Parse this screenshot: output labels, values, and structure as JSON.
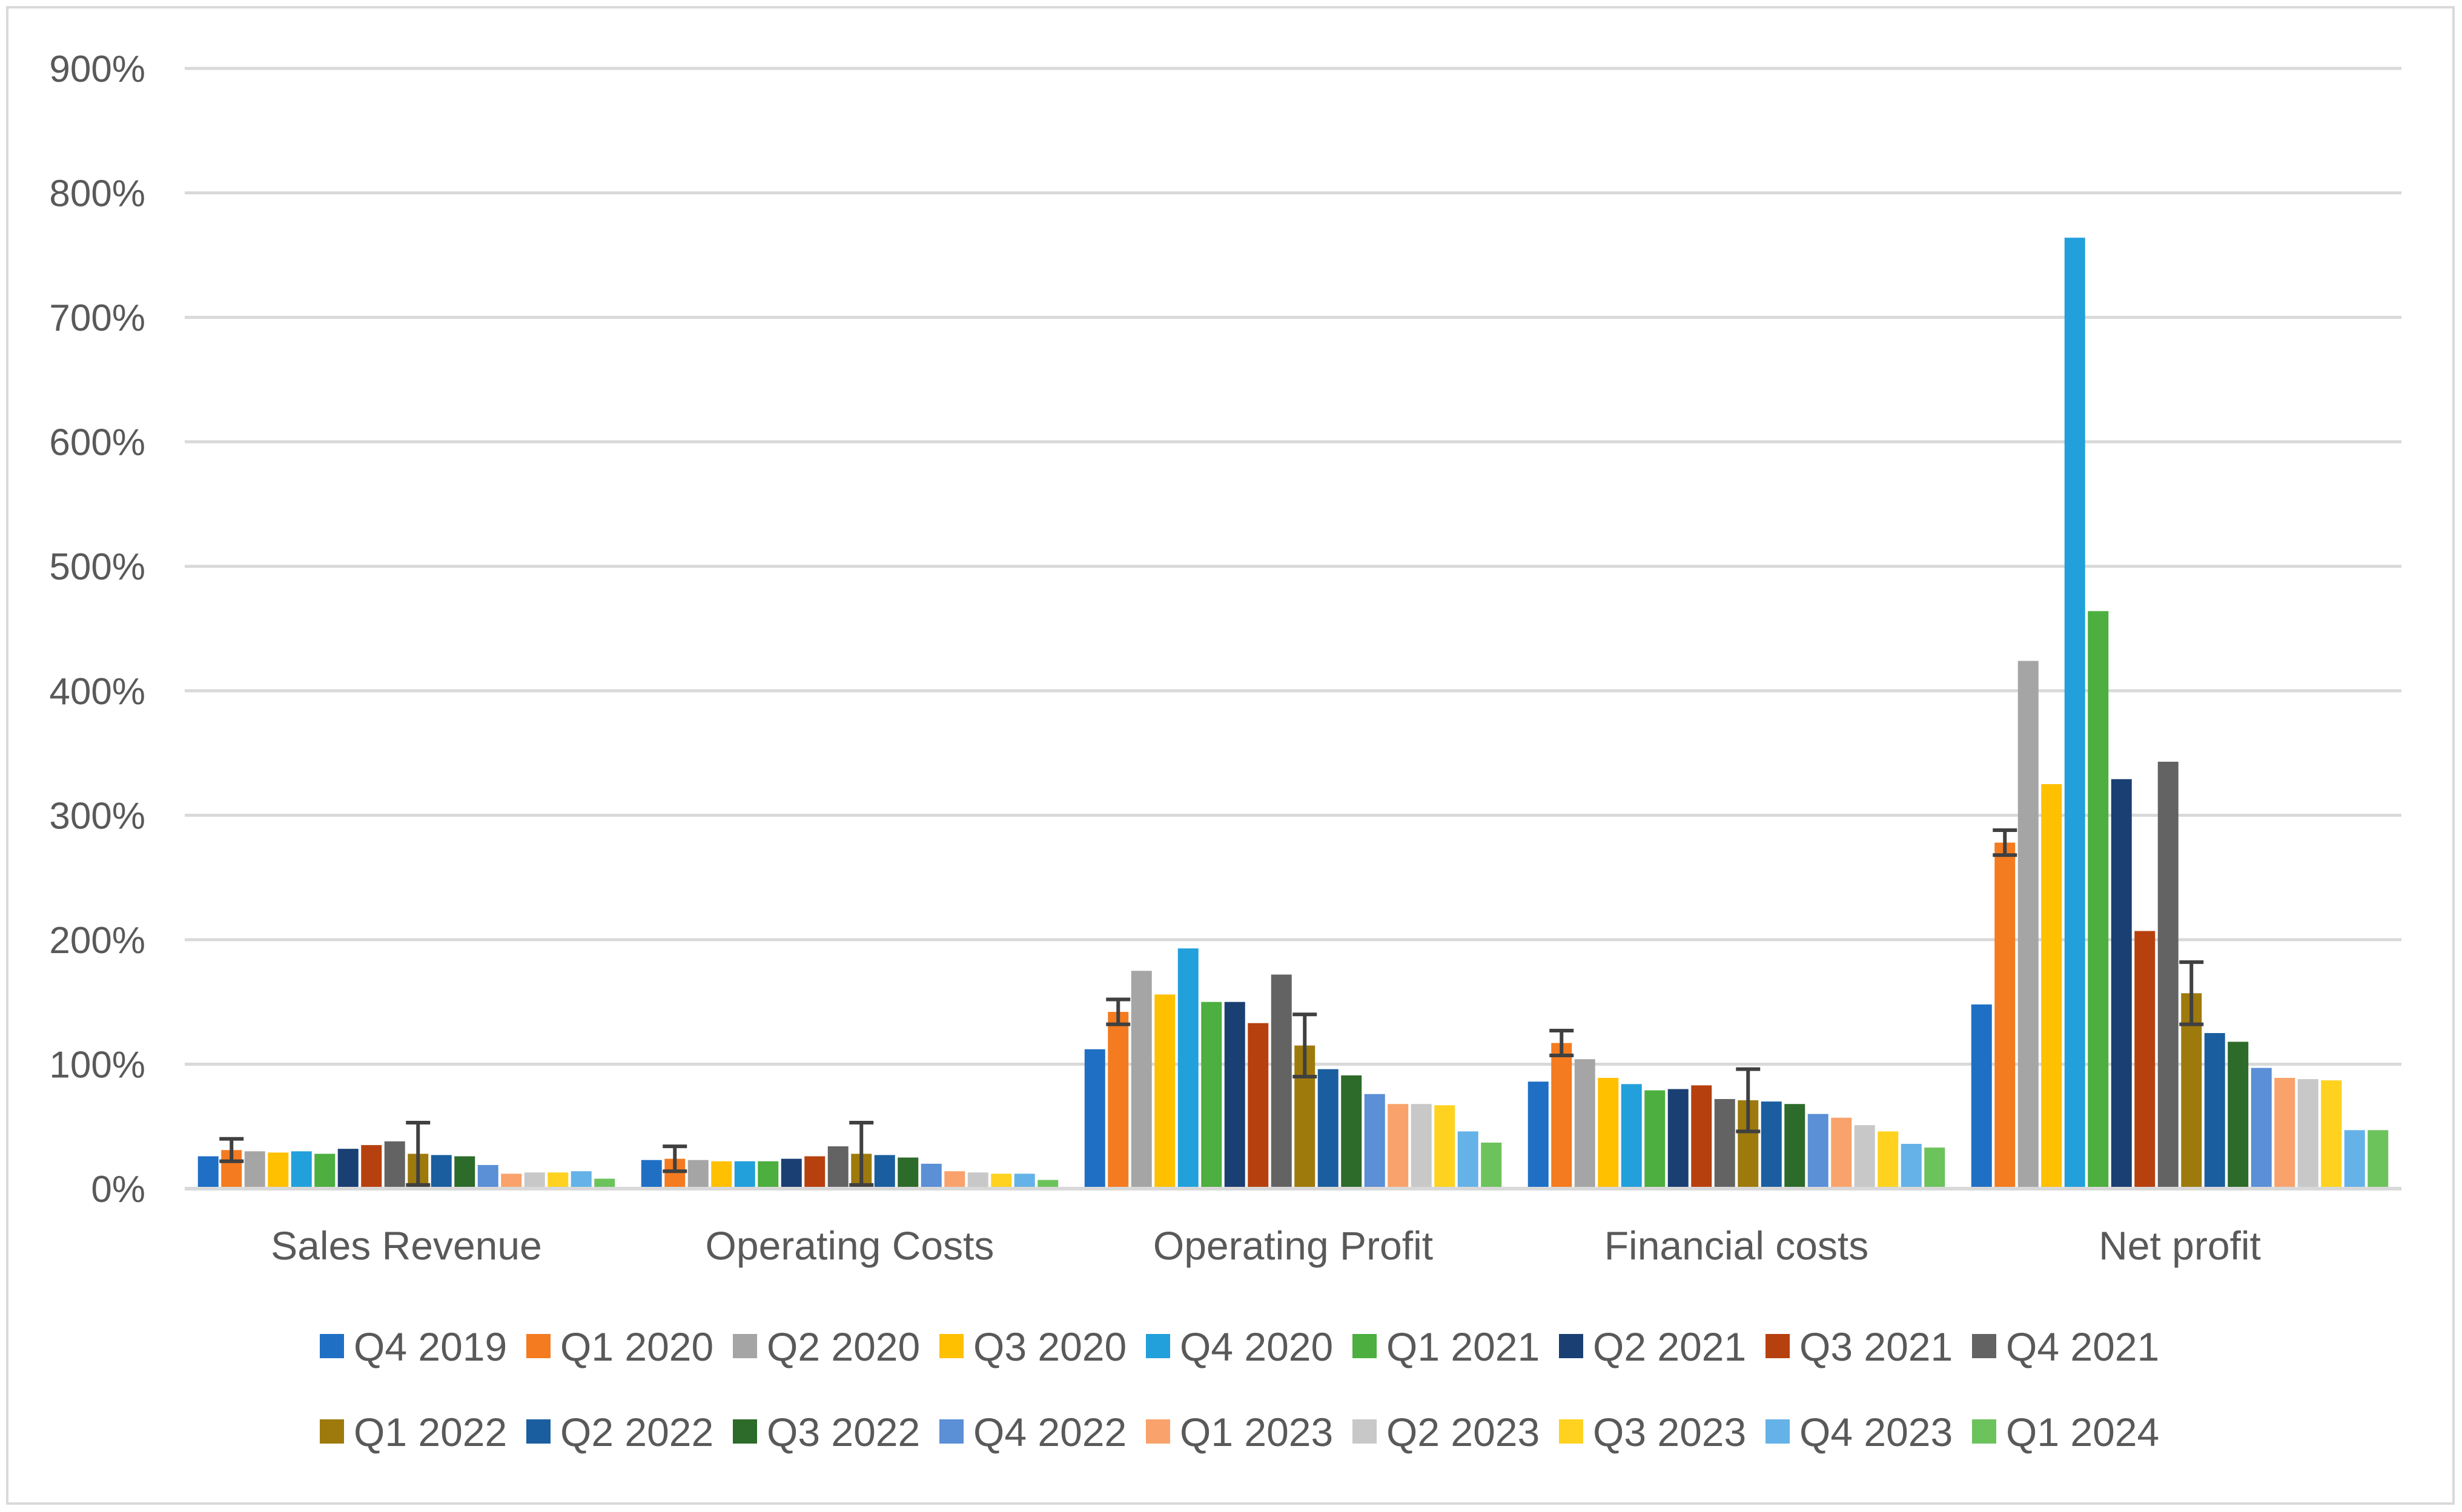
{
  "chart_data": {
    "type": "bar",
    "title": "",
    "xlabel": "",
    "ylabel": "",
    "ylim": [
      0,
      900
    ],
    "y_ticks": [
      "0%",
      "100%",
      "200%",
      "300%",
      "400%",
      "500%",
      "600%",
      "700%",
      "800%",
      "900%"
    ],
    "grid": true,
    "legend_position": "bottom",
    "categories": [
      "Sales Revenue",
      "Operating Costs",
      "Operating Profit",
      "Financial costs",
      "Net profit"
    ],
    "series": [
      {
        "name": "Q4 2019",
        "color": "#1f6fc5",
        "values": [
          26,
          23,
          112,
          86,
          148
        ]
      },
      {
        "name": "Q1 2020",
        "color": "#f47b20",
        "values": [
          31,
          24,
          142,
          117,
          278
        ]
      },
      {
        "name": "Q2 2020",
        "color": "#a5a5a5",
        "values": [
          30,
          23,
          175,
          104,
          424
        ]
      },
      {
        "name": "Q3 2020",
        "color": "#ffc000",
        "values": [
          29,
          22,
          156,
          89,
          325
        ]
      },
      {
        "name": "Q4 2020",
        "color": "#22a0db",
        "values": [
          30,
          22,
          193,
          84,
          764
        ]
      },
      {
        "name": "Q1 2021",
        "color": "#4caf3f",
        "values": [
          28,
          22,
          150,
          79,
          464
        ]
      },
      {
        "name": "Q2 2021",
        "color": "#1a3f73",
        "values": [
          32,
          24,
          150,
          80,
          329
        ]
      },
      {
        "name": "Q3 2021",
        "color": "#b7410e",
        "values": [
          35,
          26,
          133,
          83,
          207
        ]
      },
      {
        "name": "Q4 2021",
        "color": "#636363",
        "values": [
          38,
          34,
          172,
          72,
          343
        ]
      },
      {
        "name": "Q1 2022",
        "color": "#9e7a0d",
        "values": [
          28,
          28,
          115,
          71,
          157
        ]
      },
      {
        "name": "Q2 2022",
        "color": "#1b5ea0",
        "values": [
          27,
          27,
          96,
          70,
          125
        ]
      },
      {
        "name": "Q3 2022",
        "color": "#2c6b2a",
        "values": [
          26,
          25,
          91,
          68,
          118
        ]
      },
      {
        "name": "Q4 2022",
        "color": "#5b8fd6",
        "values": [
          19,
          20,
          76,
          60,
          97
        ]
      },
      {
        "name": "Q1 2023",
        "color": "#f9a26b",
        "values": [
          12,
          14,
          68,
          57,
          89
        ]
      },
      {
        "name": "Q2 2023",
        "color": "#c8c8c8",
        "values": [
          13,
          13,
          68,
          51,
          88
        ]
      },
      {
        "name": "Q3 2023",
        "color": "#ffd21f",
        "values": [
          13,
          12,
          67,
          46,
          87
        ]
      },
      {
        "name": "Q4 2023",
        "color": "#64b2e7",
        "values": [
          14,
          12,
          46,
          36,
          47
        ]
      },
      {
        "name": "Q1 2024",
        "color": "#6cc35c",
        "values": [
          8,
          7,
          37,
          33,
          47
        ]
      }
    ],
    "error_bars": [
      {
        "series": "Q1 2020",
        "values": [
          31,
          24,
          142,
          117,
          278
        ],
        "err": [
          9,
          10,
          10,
          10,
          10
        ]
      },
      {
        "series": "Q1 2022",
        "values": [
          28,
          28,
          115,
          71,
          157
        ],
        "err": [
          25,
          25,
          25,
          25,
          25
        ]
      }
    ],
    "colors": {
      "grid": "#d9d9d9",
      "axis": "#d9d9d9",
      "text": "#595959",
      "error_bar": "#404040"
    }
  }
}
